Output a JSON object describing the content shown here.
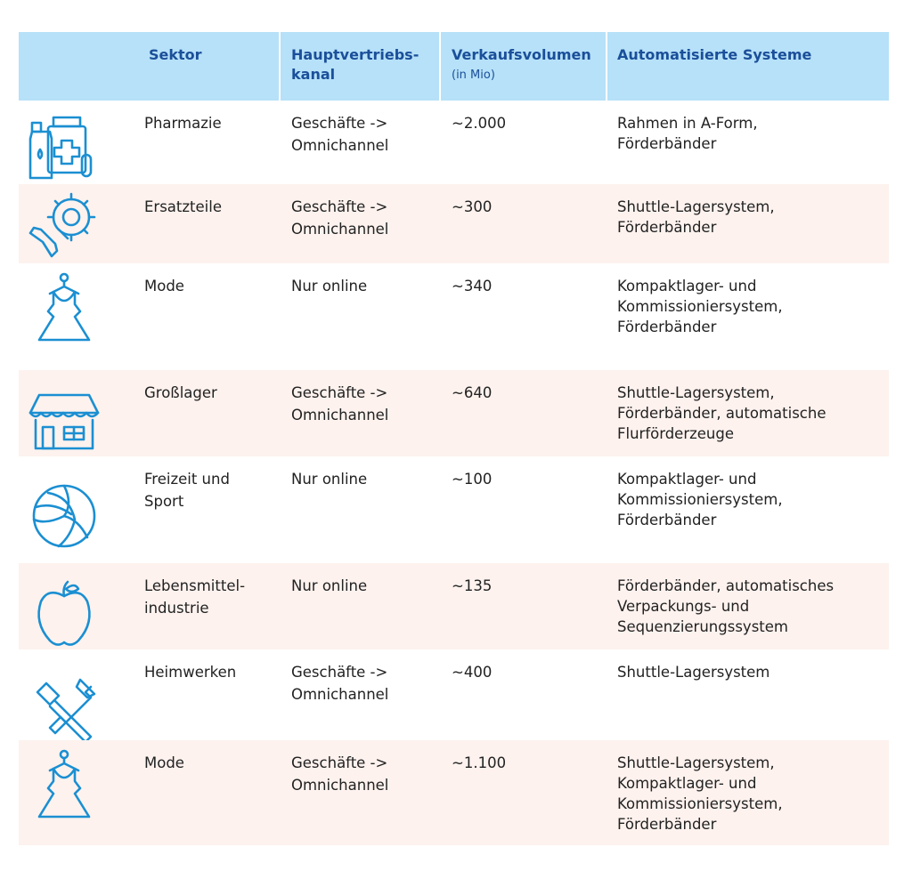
{
  "header": {
    "columns": [
      {
        "lines": [
          "Sektor"
        ]
      },
      {
        "lines": [
          "Hauptvertriebs-",
          "kanal"
        ]
      },
      {
        "lines": [
          "Verkaufsvolumen"
        ],
        "note": "(in Mio)"
      },
      {
        "lines": [
          "Automatisierte Systeme"
        ]
      }
    ]
  },
  "table": {
    "rows": [
      {
        "sector": [
          "Pharmazie"
        ],
        "channel": [
          "Geschäfte ->",
          "Omnichannel"
        ],
        "volume": "~2.000",
        "systems": [
          "Rahmen in A-Form,",
          "Förderbänder"
        ]
      },
      {
        "sector": [
          "Ersatzteile"
        ],
        "channel": [
          "Geschäfte ->",
          "Omnichannel"
        ],
        "volume": "~300",
        "systems": [
          "Shuttle-Lagersystem,",
          "Förderbänder"
        ]
      },
      {
        "sector": [
          "Mode"
        ],
        "channel": [
          "Nur online"
        ],
        "volume": "~340",
        "systems": [
          "Kompaktlager- und",
          "Kommissioniersystem,",
          "Förderbänder"
        ]
      },
      {
        "sector": [
          "Großlager"
        ],
        "channel": [
          "Geschäfte ->",
          "Omnichannel"
        ],
        "volume": "~640",
        "systems": [
          "Shuttle-Lagersystem,",
          "Förderbänder, automatische",
          "Flurförderzeuge"
        ]
      },
      {
        "sector": [
          "Freizeit und",
          "Sport"
        ],
        "channel": [
          "Nur online"
        ],
        "volume": "~100",
        "systems": [
          "Kompaktlager- und",
          "Kommissioniersystem,",
          "Förderbänder"
        ]
      },
      {
        "sector": [
          "Lebensmittel-",
          "industrie"
        ],
        "channel": [
          "Nur online"
        ],
        "volume": "~135",
        "systems": [
          "Förderbänder, automatisches",
          "Verpackungs- und",
          "Sequenzierungssystem"
        ]
      },
      {
        "sector": [
          "Heimwerken"
        ],
        "channel": [
          "Geschäfte ->",
          "Omnichannel"
        ],
        "volume": "~400",
        "systems": [
          "Shuttle-Lagersystem"
        ]
      },
      {
        "sector": [
          "Mode"
        ],
        "channel": [
          "Geschäfte ->",
          "Omnichannel"
        ],
        "volume": "~1.100",
        "systems": [
          "Shuttle-Lagersystem,",
          "Kompaktlager- und",
          "Kommissioniersystem,",
          "Förderbänder"
        ]
      }
    ]
  }
}
